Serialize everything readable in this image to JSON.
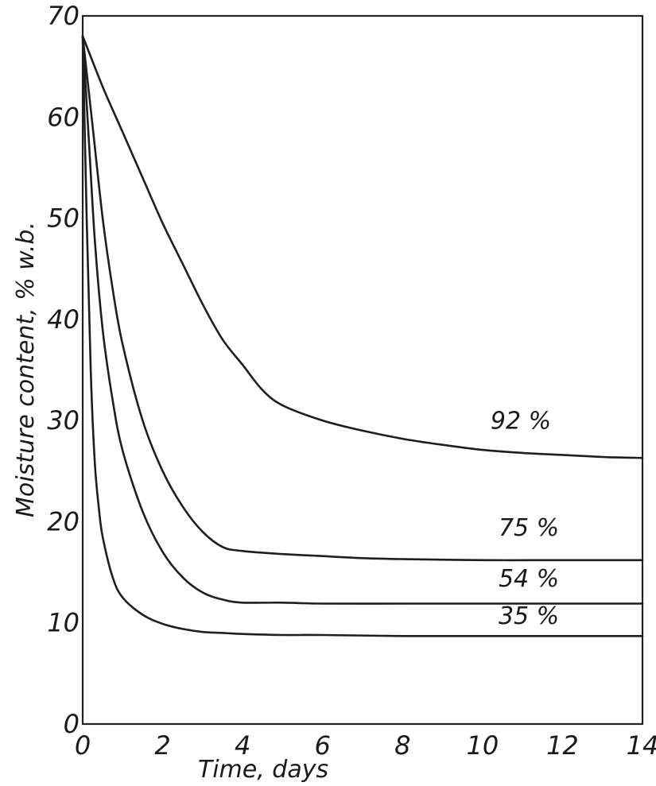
{
  "chart_data": {
    "type": "line",
    "title": "",
    "xlabel": "Time, days",
    "ylabel": "Moisture content, % w.b.",
    "xlim": [
      0,
      14
    ],
    "ylim": [
      0,
      70
    ],
    "x_ticks": [
      0,
      2,
      4,
      6,
      8,
      10,
      12,
      14
    ],
    "y_ticks": [
      0,
      10,
      20,
      30,
      40,
      50,
      60,
      70
    ],
    "grid": false,
    "series": [
      {
        "name": "92 %",
        "x": [
          0,
          0.5,
          1,
          1.5,
          2,
          2.5,
          3,
          3.5,
          4,
          4.5,
          5,
          6,
          7,
          8,
          9,
          10,
          11,
          12,
          13,
          14
        ],
        "y": [
          68,
          63,
          58.5,
          54,
          49.5,
          45.5,
          41.5,
          38,
          35.5,
          33,
          31.5,
          30,
          29,
          28.2,
          27.6,
          27.1,
          26.8,
          26.6,
          26.4,
          26.3
        ]
      },
      {
        "name": "75 %",
        "x": [
          0,
          0.25,
          0.5,
          0.75,
          1,
          1.5,
          2,
          2.5,
          3,
          3.5,
          4,
          5,
          6,
          7,
          8,
          10,
          12,
          14
        ],
        "y": [
          68,
          59,
          50,
          43,
          37.5,
          30,
          25,
          21.5,
          19,
          17.5,
          17.1,
          16.8,
          16.6,
          16.4,
          16.3,
          16.2,
          16.2,
          16.2
        ]
      },
      {
        "name": "54 %",
        "x": [
          0,
          0.15,
          0.3,
          0.5,
          0.75,
          1,
          1.5,
          2,
          2.5,
          3,
          3.5,
          4,
          5,
          6,
          8,
          10,
          12,
          14
        ],
        "y": [
          68,
          58,
          48,
          39,
          32,
          27,
          21,
          17,
          14.5,
          13,
          12.3,
          12,
          12,
          11.9,
          11.9,
          11.9,
          11.9,
          11.9
        ]
      },
      {
        "name": "35 %",
        "x": [
          0,
          0.1,
          0.2,
          0.3,
          0.4,
          0.5,
          0.75,
          1,
          1.5,
          2,
          2.5,
          3,
          3.5,
          4,
          5,
          6,
          8,
          10,
          12,
          14
        ],
        "y": [
          68,
          50,
          35,
          26,
          21.5,
          18.5,
          14.5,
          12.5,
          10.8,
          9.9,
          9.4,
          9.1,
          9,
          8.9,
          8.8,
          8.8,
          8.7,
          8.7,
          8.7,
          8.7
        ]
      }
    ],
    "labels": [
      {
        "text": "92 %",
        "x": 10.2,
        "y": 29.2
      },
      {
        "text": "75 %",
        "x": 10.4,
        "y": 18.6
      },
      {
        "text": "54 %",
        "x": 10.4,
        "y": 13.6
      },
      {
        "text": "35 %",
        "x": 10.4,
        "y": 9.9
      }
    ]
  }
}
